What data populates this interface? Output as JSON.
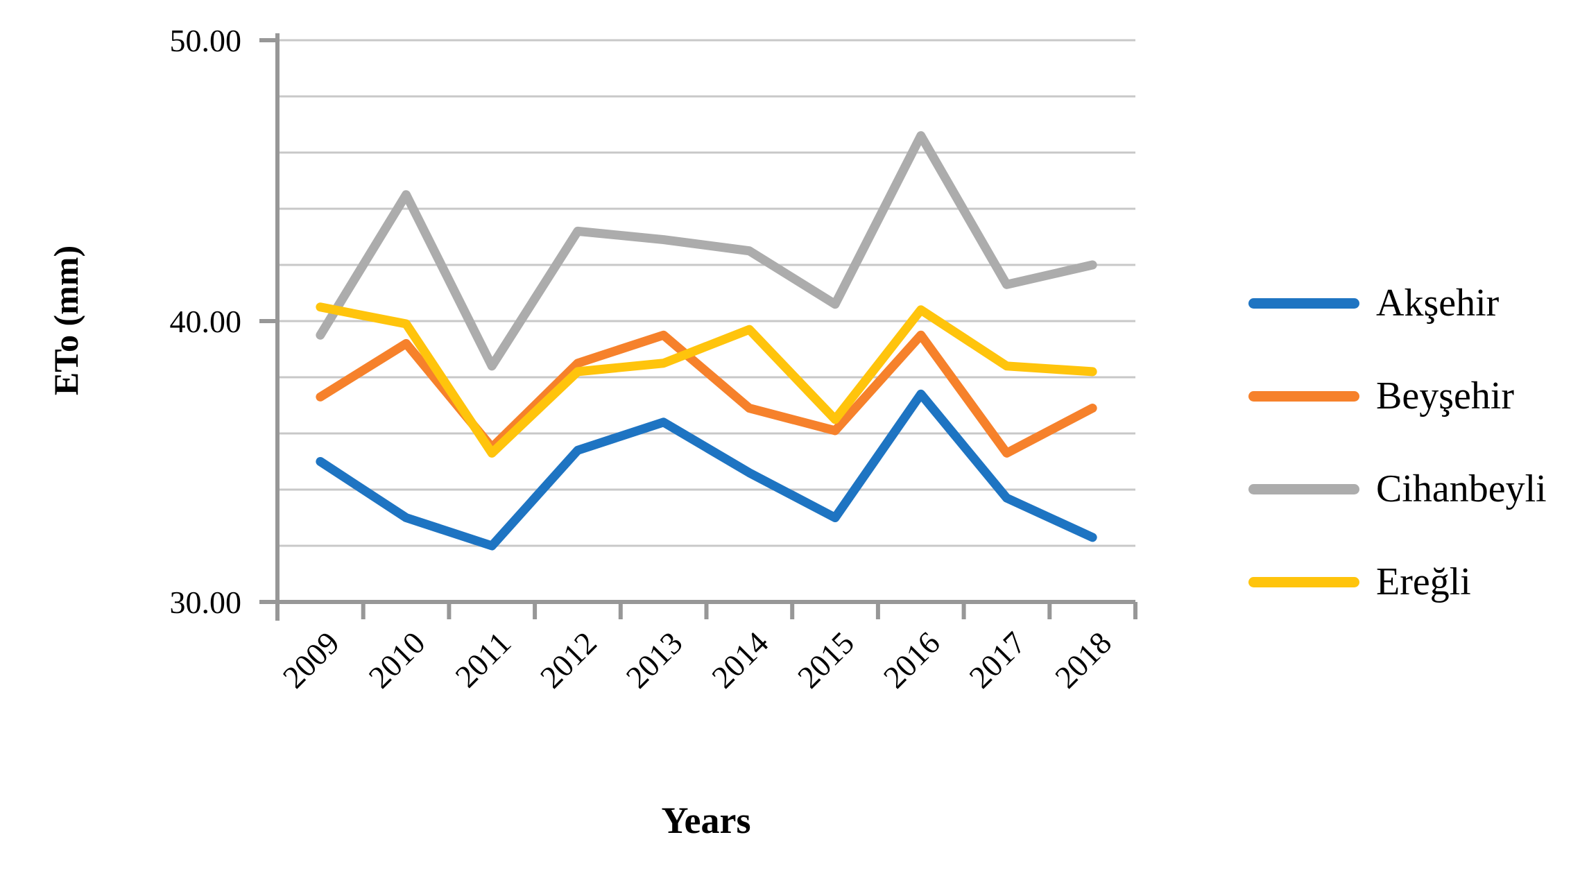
{
  "chart_data": {
    "type": "line",
    "title": "",
    "xlabel": "Years",
    "ylabel": "ETo (mm)",
    "ylim": [
      30,
      50
    ],
    "gridline_step": 2,
    "grid": "horizontal-only",
    "legend_position": "right",
    "y_major_ticks": [
      {
        "value": 50,
        "label": "50.00"
      },
      {
        "value": 40,
        "label": "40.00"
      },
      {
        "value": 30,
        "label": "30.00"
      }
    ],
    "x": [
      "2009",
      "2010",
      "2011",
      "2012",
      "2013",
      "2014",
      "2015",
      "2016",
      "2017",
      "2018"
    ],
    "series": [
      {
        "name": "Akşehir",
        "color": "#1E74C2",
        "values": [
          35.0,
          33.0,
          32.0,
          35.4,
          36.4,
          34.6,
          33.0,
          37.4,
          33.7,
          32.3
        ]
      },
      {
        "name": "Beyşehir",
        "color": "#F6812B",
        "values": [
          37.3,
          39.2,
          35.5,
          38.5,
          39.5,
          36.9,
          36.1,
          39.5,
          35.3,
          36.9
        ]
      },
      {
        "name": "Cihanbeyli",
        "color": "#ACACAC",
        "values": [
          39.5,
          44.5,
          38.4,
          43.2,
          42.9,
          42.5,
          40.6,
          46.6,
          41.3,
          42.0
        ]
      },
      {
        "name": "Ereğli",
        "color": "#FFC40C",
        "values": [
          40.5,
          39.9,
          35.3,
          38.2,
          38.5,
          39.7,
          36.5,
          40.4,
          38.4,
          38.2
        ]
      }
    ],
    "colors": {
      "gridline": "#C8C8C8",
      "axis": "#979797",
      "text": "#000000",
      "background": "#FFFFFF"
    }
  }
}
